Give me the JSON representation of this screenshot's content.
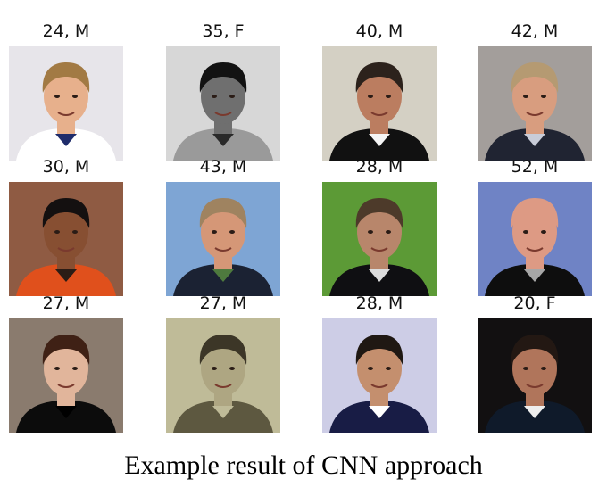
{
  "grid": [
    {
      "label": "24, M",
      "bg": "#e7e5ea",
      "skin": "#e7b08c",
      "hair": "#a27a44",
      "cloth": "#ffffff",
      "accent": "#1f2c6b"
    },
    {
      "label": "35, F",
      "bg": "#d7d7d7",
      "skin": "#6f6f6f",
      "hair": "#121212",
      "cloth": "#9a9a9a",
      "accent": "#2a2a2a"
    },
    {
      "label": "40, M",
      "bg": "#d4d0c4",
      "skin": "#bb7d60",
      "hair": "#2c221c",
      "cloth": "#111111",
      "accent": "#f5f5f5"
    },
    {
      "label": "42, M",
      "bg": "#a39e9b",
      "skin": "#d89d7f",
      "hair": "#b59a72",
      "cloth": "#202432",
      "accent": "#c8ccd8"
    },
    {
      "label": "30, M",
      "bg": "#8f5b43",
      "skin": "#874f32",
      "hair": "#141010",
      "cloth": "#e0501c",
      "accent": "#2b1c15"
    },
    {
      "label": "43, M",
      "bg": "#7ea5d4",
      "skin": "#d59777",
      "hair": "#9f8360",
      "cloth": "#1b2233",
      "accent": "#4e7a3e"
    },
    {
      "label": "28, M",
      "bg": "#5c9a36",
      "skin": "#b8866b",
      "hair": "#4d3a2a",
      "cloth": "#0f0f12",
      "accent": "#dcdcdc"
    },
    {
      "label": "52, M",
      "bg": "#6f83c5",
      "skin": "#dd9a84",
      "hair": "#dd9a84",
      "cloth": "#0e0e0e",
      "accent": "#a7a7a7"
    },
    {
      "label": "27, M",
      "bg": "#8a7b6e",
      "skin": "#e1b59b",
      "hair": "#3f2115",
      "cloth": "#0c0c0c",
      "accent": "#000000"
    },
    {
      "label": "27, M",
      "bg": "#bfbb98",
      "skin": "#aea682",
      "hair": "#3c3627",
      "cloth": "#5d5840",
      "accent": "#bfbb98"
    },
    {
      "label": "28, M",
      "bg": "#cdcde6",
      "skin": "#c48f6e",
      "hair": "#1f1813",
      "cloth": "#181c45",
      "accent": "#ffffff"
    },
    {
      "label": "20, F",
      "bg": "#121011",
      "skin": "#b0755b",
      "hair": "#231813",
      "cloth": "#0f1a2a",
      "accent": "#eeeeee"
    }
  ],
  "caption": "Example result of CNN approach"
}
